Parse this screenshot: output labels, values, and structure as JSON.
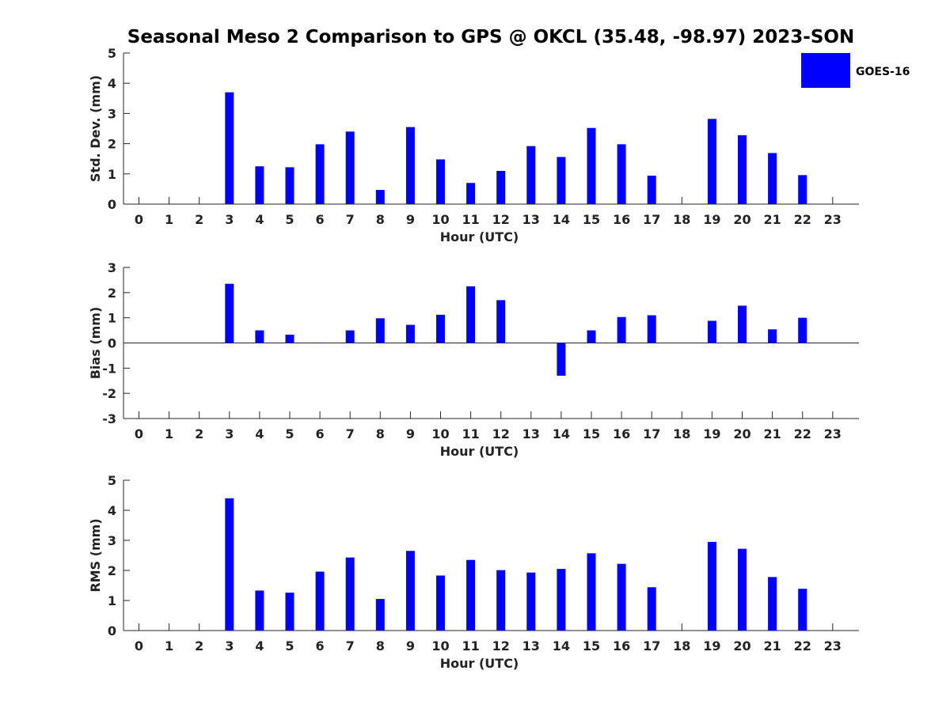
{
  "title": "Seasonal Meso 2 Comparison to GPS @ OKCL (35.48, -98.97) 2023-SON",
  "legend": {
    "label": "GOES-16",
    "color": "#0000ff",
    "placement": "top-right"
  },
  "chart_data": [
    {
      "type": "bar",
      "name": "std-dev",
      "xlabel": "Hour (UTC)",
      "ylabel": "Std. Dev. (mm)",
      "ylim": [
        0,
        5
      ],
      "yticks": [
        0,
        1,
        2,
        3,
        4,
        5
      ],
      "categories": [
        "0",
        "1",
        "2",
        "3",
        "4",
        "5",
        "6",
        "7",
        "8",
        "9",
        "10",
        "11",
        "12",
        "13",
        "14",
        "15",
        "16",
        "17",
        "18",
        "19",
        "20",
        "21",
        "22",
        "23"
      ],
      "series": [
        {
          "name": "GOES-16",
          "values": [
            null,
            null,
            null,
            3.7,
            1.25,
            1.22,
            1.98,
            2.4,
            0.47,
            2.55,
            1.48,
            0.7,
            1.1,
            1.92,
            1.56,
            2.52,
            1.98,
            0.94,
            null,
            2.82,
            2.28,
            1.69,
            0.96,
            null
          ]
        }
      ],
      "grid": false
    },
    {
      "type": "bar",
      "name": "bias",
      "xlabel": "Hour (UTC)",
      "ylabel": "Bias (mm)",
      "ylim": [
        -3,
        3
      ],
      "yticks": [
        -3,
        -2,
        -1,
        0,
        1,
        2,
        3
      ],
      "categories": [
        "0",
        "1",
        "2",
        "3",
        "4",
        "5",
        "6",
        "7",
        "8",
        "9",
        "10",
        "11",
        "12",
        "13",
        "14",
        "15",
        "16",
        "17",
        "18",
        "19",
        "20",
        "21",
        "22",
        "23"
      ],
      "series": [
        {
          "name": "GOES-16",
          "values": [
            null,
            null,
            null,
            2.35,
            0.5,
            0.33,
            0.0,
            0.5,
            0.98,
            0.72,
            1.12,
            2.25,
            1.7,
            null,
            -1.3,
            0.5,
            1.03,
            1.1,
            null,
            0.88,
            1.48,
            0.54,
            1.0,
            null
          ]
        }
      ],
      "grid": false,
      "zero_line": true
    },
    {
      "type": "bar",
      "name": "rms",
      "xlabel": "Hour (UTC)",
      "ylabel": "RMS (mm)",
      "ylim": [
        0,
        5
      ],
      "yticks": [
        0,
        1,
        2,
        3,
        4,
        5
      ],
      "categories": [
        "0",
        "1",
        "2",
        "3",
        "4",
        "5",
        "6",
        "7",
        "8",
        "9",
        "10",
        "11",
        "12",
        "13",
        "14",
        "15",
        "16",
        "17",
        "18",
        "19",
        "20",
        "21",
        "22",
        "23"
      ],
      "series": [
        {
          "name": "GOES-16",
          "values": [
            null,
            null,
            null,
            4.4,
            1.33,
            1.26,
            1.96,
            2.43,
            1.05,
            2.65,
            1.83,
            2.35,
            2.01,
            1.93,
            2.05,
            2.57,
            2.22,
            1.44,
            null,
            2.95,
            2.72,
            1.78,
            1.39,
            null
          ]
        }
      ],
      "grid": false
    }
  ]
}
